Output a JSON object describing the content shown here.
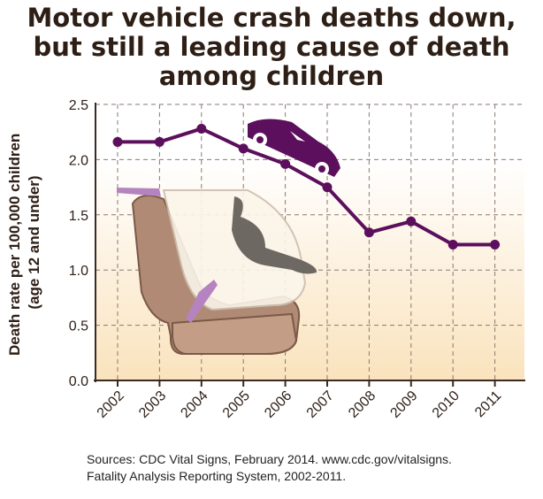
{
  "title_lines": [
    "Motor vehicle crash deaths down,",
    "but still a leading cause of death",
    "among children"
  ],
  "sources": [
    "Sources: CDC Vital Signs, February 2014. www.cdc.gov/vitalsigns.",
    "Fatality Analysis Reporting System, 2002-2011."
  ],
  "colors": {
    "line": "#5c0f5c",
    "background_top": "#ffffff",
    "background_bottom": "#fae3bd"
  },
  "icons": [
    "car-icon",
    "child-car-seat-illustration"
  ],
  "chart_data": {
    "type": "line",
    "title": "Motor vehicle crash deaths down, but still a leading cause of death among children",
    "xlabel": "",
    "ylabel": "Death rate per 100,000 children (age 12 and under)",
    "ylabel_lines": [
      "Death rate per 100,000 children",
      "(age 12 and under)"
    ],
    "categories": [
      "2002",
      "2003",
      "2004",
      "2005",
      "2006",
      "2007",
      "2008",
      "2009",
      "2010",
      "2011"
    ],
    "values": [
      2.16,
      2.16,
      2.28,
      2.1,
      1.96,
      1.75,
      1.34,
      1.44,
      1.23,
      1.23
    ],
    "ylim": [
      0,
      2.5
    ],
    "yticks": [
      "0.0",
      "0.5",
      "1.0",
      "1.5",
      "2.0",
      "2.5"
    ],
    "grid": true
  }
}
